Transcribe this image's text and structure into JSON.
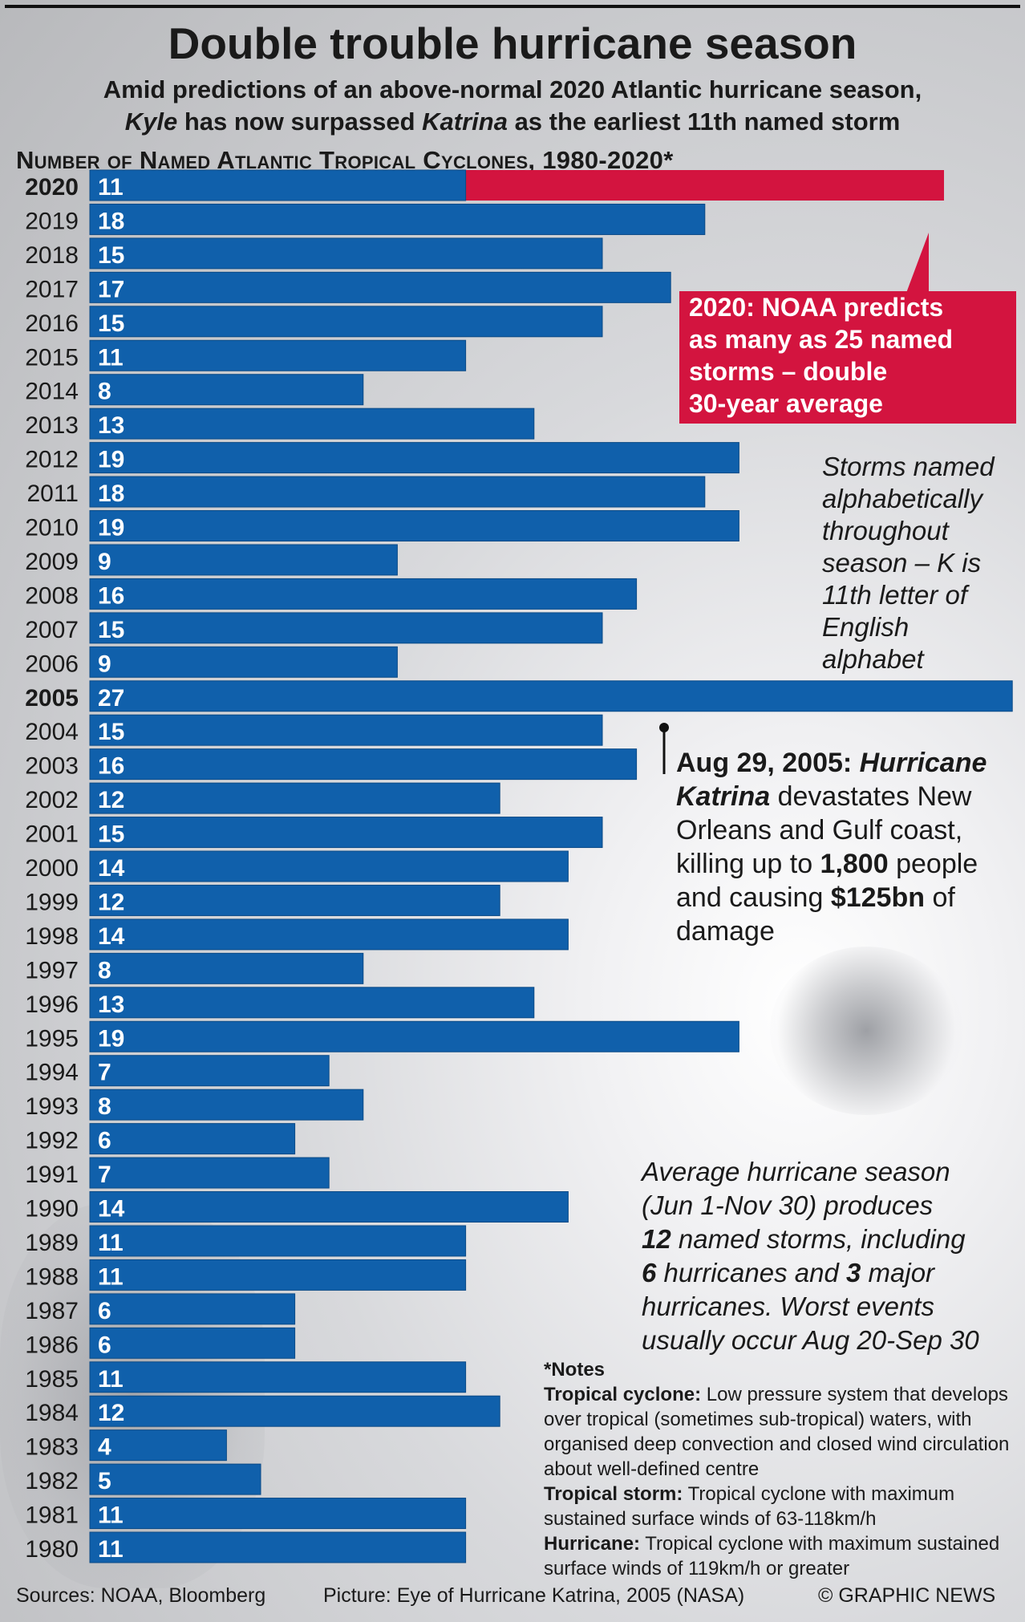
{
  "title": "Double trouble hurricane season",
  "subtitle_line1": "Amid predictions of an above-normal 2020 Atlantic hurricane season,",
  "subtitle_line2_parts": [
    "Kyle",
    " has now surpassed ",
    "Katrina",
    " as the earliest 11th named storm"
  ],
  "chart_data": {
    "type": "bar",
    "orientation": "horizontal",
    "title": "Number of Named Atlantic Tropical Cyclones, 1980-2020*",
    "categories": [
      "2020",
      "2019",
      "2018",
      "2017",
      "2016",
      "2015",
      "2014",
      "2013",
      "2012",
      "2011",
      "2010",
      "2009",
      "2008",
      "2007",
      "2006",
      "2005",
      "2004",
      "2003",
      "2002",
      "2001",
      "2000",
      "1999",
      "1998",
      "1997",
      "1996",
      "1995",
      "1994",
      "1993",
      "1992",
      "1991",
      "1990",
      "1989",
      "1988",
      "1987",
      "1986",
      "1985",
      "1984",
      "1983",
      "1982",
      "1981",
      "1980"
    ],
    "values": [
      11,
      18,
      15,
      17,
      15,
      11,
      8,
      13,
      19,
      18,
      19,
      9,
      16,
      15,
      9,
      27,
      15,
      16,
      12,
      15,
      14,
      12,
      14,
      8,
      13,
      19,
      7,
      8,
      6,
      7,
      14,
      11,
      11,
      6,
      6,
      11,
      12,
      4,
      5,
      11,
      11
    ],
    "highlighted_years": [
      "2020",
      "2005"
    ],
    "prediction_2020": 25,
    "xlim": [
      0,
      27
    ],
    "colors": {
      "bar": "#1060ab",
      "prediction": "#d3143f",
      "label": "#ffffff"
    }
  },
  "callout_2020": [
    "2020: NOAA predicts",
    "as many as 25 named",
    "storms – double",
    "30-year average"
  ],
  "alphabet_note": [
    "Storms named",
    "alphabetically",
    "throughout",
    "season – K is",
    "11th letter of",
    "English",
    "alphabet"
  ],
  "katrina_note": {
    "bold_date": "Aug 29, 2005: ",
    "bold_italic_name_1": "Hurricane",
    "bold_italic_name_2": "Katrina",
    "text_1": " devastates New",
    "text_2": "Orleans and Gulf coast,",
    "text_3": "killing up to ",
    "bold_deaths": "1,800",
    "text_4": " people",
    "text_5": "and causing ",
    "bold_damage": "$125bn",
    "text_6": " of",
    "text_7": "damage"
  },
  "average_note": {
    "line1": "Average hurricane season",
    "line2": "(Jun 1-Nov 30) produces",
    "bold_12": "12",
    "line3_rest": " named storms, including",
    "bold_6": "6",
    "line4_mid": " hurricanes and ",
    "bold_3": "3",
    "line4_end": " major",
    "line5": "hurricanes. Worst events",
    "line6": "usually occur Aug 20-Sep 30"
  },
  "notes": {
    "heading": "*Notes",
    "tc_term": "Tropical cyclone:",
    "tc_def": " Low pressure system that develops over tropical (sometimes sub-tropical) waters, with organised deep convection and closed wind circulation about well-defined centre",
    "ts_term": "Tropical storm:",
    "ts_def": " Tropical cyclone with maximum sustained surface winds of 63-118km/h",
    "h_term": "Hurricane:",
    "h_def": " Tropical cyclone with maximum sustained surface winds of 119km/h or greater"
  },
  "footer": {
    "sources": "Sources: NOAA, Bloomberg",
    "picture": "Picture: Eye of Hurricane Katrina, 2005 (NASA)",
    "credit": "© GRAPHIC NEWS"
  }
}
